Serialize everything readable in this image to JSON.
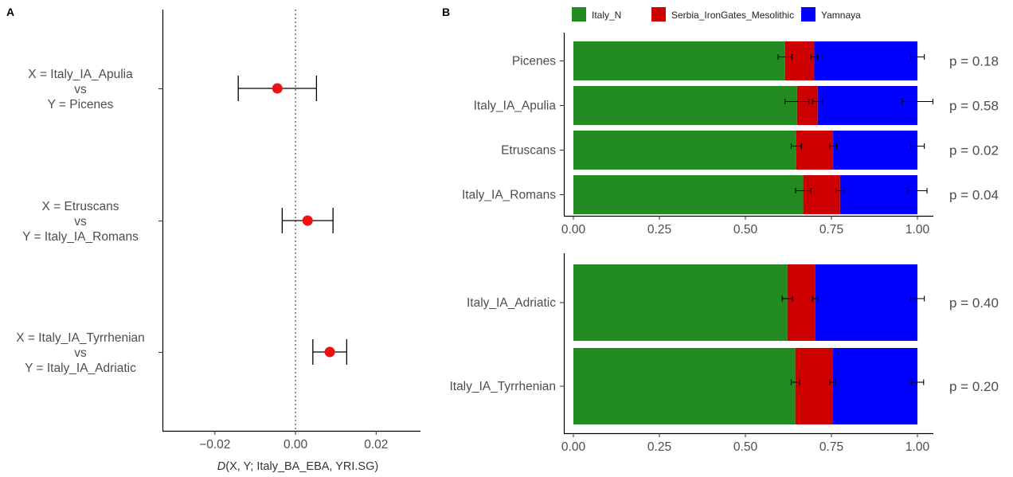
{
  "chart_data": [
    {
      "panel": "A",
      "type": "scatter",
      "xlabel_italic": "D",
      "xlabel_rest": "(X, Y; Italy_BA_EBA, YRI.SG)",
      "xlim": [
        -0.033,
        0.031
      ],
      "xticks": [
        -0.02,
        0.0,
        0.02
      ],
      "xtick_labels": [
        "−0.02",
        "0.00",
        "0.02"
      ],
      "reference_line": 0.0,
      "point_color": "#ee1111",
      "rows": [
        {
          "lines": [
            "X = Italy_IA_Apulia",
            "vs",
            "Y = Picenes"
          ],
          "value": -0.0045,
          "lo": -0.0142,
          "hi": 0.0052
        },
        {
          "lines": [
            "X = Etruscans",
            "vs",
            "Y = Italy_IA_Romans"
          ],
          "value": 0.003,
          "lo": -0.0033,
          "hi": 0.0093
        },
        {
          "lines": [
            "X = Italy_IA_Tyrrhenian",
            "vs",
            "Y = Italy_IA_Adriatic"
          ],
          "value": 0.0085,
          "lo": 0.0043,
          "hi": 0.0127
        }
      ]
    },
    {
      "panel": "B",
      "type": "bar",
      "stacked": true,
      "orientation": "horizontal",
      "legend_placement": "top",
      "series": [
        {
          "name": "Italy_N",
          "color": "#228b22"
        },
        {
          "name": "Serbia_IronGates_Mesolithic",
          "color": "#cc0000"
        },
        {
          "name": "Yamnaya",
          "color": "#0000ff"
        }
      ],
      "xlim": [
        0,
        1
      ],
      "xticks": [
        0,
        0.25,
        0.5,
        0.75,
        1.0
      ],
      "xtick_labels": [
        "0.00",
        "0.25",
        "0.50",
        "0.75",
        "1.00"
      ],
      "groups": [
        {
          "bars": [
            {
              "label": "Picenes",
              "values": [
                0.615,
                0.085,
                0.3
              ],
              "errors": [
                0.02,
                0.01,
                0.02
              ],
              "p": "p = 0.18"
            },
            {
              "label": "Italy_IA_Apulia",
              "values": [
                0.65,
                0.06,
                0.29
              ],
              "errors": [
                0.035,
                0.015,
                0.045
              ],
              "p": "p = 0.58"
            },
            {
              "label": "Etruscans",
              "values": [
                0.648,
                0.107,
                0.245
              ],
              "errors": [
                0.015,
                0.01,
                0.02
              ],
              "p": "p = 0.02"
            },
            {
              "label": "Italy_IA_Romans",
              "values": [
                0.668,
                0.107,
                0.225
              ],
              "errors": [
                0.022,
                0.012,
                0.028
              ],
              "p": "p = 0.04"
            }
          ]
        },
        {
          "bars": [
            {
              "label": "Italy_IA_Adriatic",
              "values": [
                0.622,
                0.081,
                0.297
              ],
              "errors": [
                0.015,
                0.008,
                0.02
              ],
              "p": "p = 0.40"
            },
            {
              "label": "Italy_IA_Tyrrhenian",
              "values": [
                0.645,
                0.108,
                0.247
              ],
              "errors": [
                0.012,
                0.008,
                0.018
              ],
              "p": "p = 0.20"
            }
          ]
        }
      ]
    }
  ]
}
